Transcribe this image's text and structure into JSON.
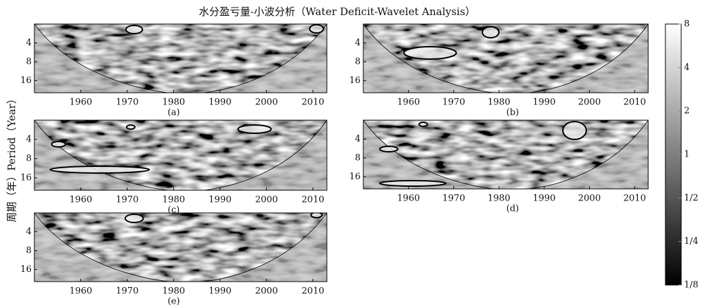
{
  "title": "水分盈亏量-小波分析（Water Deficit-Wavelet Analysis）",
  "ylabel": "周期（年）Period（Year）",
  "chart_data": [
    {
      "type": "wavelet",
      "label": "(a)",
      "xlim": [
        1950,
        2013
      ],
      "xticks": [
        1960,
        1970,
        1980,
        1990,
        2000,
        2010
      ],
      "ylim": [
        2,
        25
      ],
      "yticks": [
        4,
        8,
        16
      ],
      "log_scale_y": true
    },
    {
      "type": "wavelet",
      "label": "(b)",
      "xlim": [
        1950,
        2013
      ],
      "xticks": [
        1960,
        1970,
        1980,
        1990,
        2000,
        2010
      ],
      "ylim": [
        2,
        25
      ],
      "yticks": [
        4,
        8,
        16
      ],
      "log_scale_y": true
    },
    {
      "type": "wavelet",
      "label": "(c)",
      "xlim": [
        1950,
        2013
      ],
      "xticks": [
        1960,
        1970,
        1980,
        1990,
        2000,
        2010
      ],
      "ylim": [
        2,
        25
      ],
      "yticks": [
        4,
        8,
        16
      ],
      "log_scale_y": true
    },
    {
      "type": "wavelet",
      "label": "(d)",
      "xlim": [
        1950,
        2013
      ],
      "xticks": [
        1960,
        1970,
        1980,
        1990,
        2000,
        2010
      ],
      "ylim": [
        2,
        25
      ],
      "yticks": [
        4,
        8,
        16
      ],
      "log_scale_y": true
    },
    {
      "type": "wavelet",
      "label": "(e)",
      "xlim": [
        1950,
        2013
      ],
      "xticks": [
        1960,
        1970,
        1980,
        1990,
        2000,
        2010
      ],
      "ylim": [
        2,
        25
      ],
      "yticks": [
        4,
        8,
        16
      ],
      "log_scale_y": true
    }
  ],
  "colorbar": {
    "ylim": [
      0.125,
      8
    ],
    "log_scale": true,
    "yticks": [
      8,
      4,
      2,
      1,
      {
        "value": 0.5,
        "label": "1/2"
      },
      {
        "value": 0.25,
        "label": "1/4"
      },
      {
        "value": 0.125,
        "label": "1/8"
      }
    ]
  }
}
